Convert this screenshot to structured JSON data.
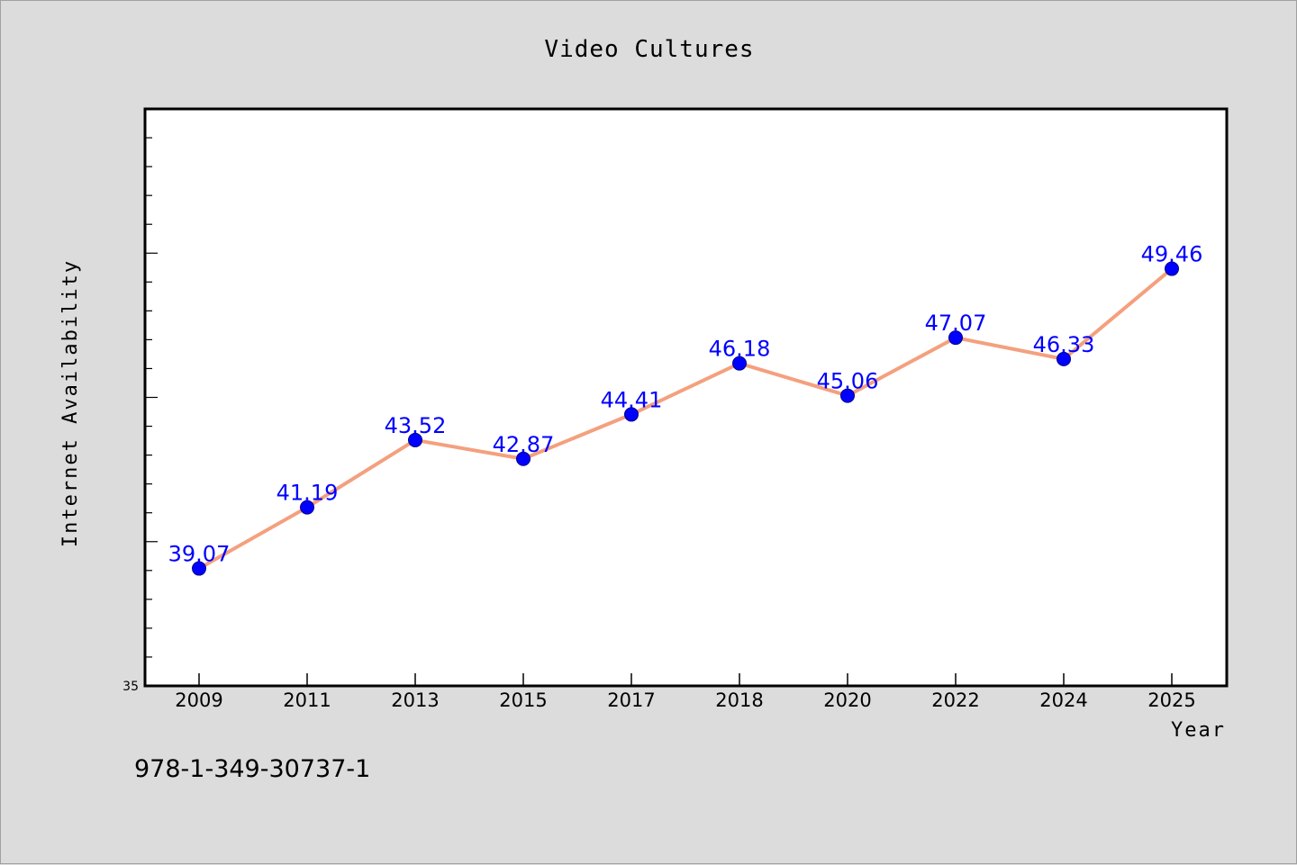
{
  "chart_data": {
    "type": "line",
    "title": "Video Cultures",
    "xlabel": "Year",
    "ylabel": "Internet Availability",
    "categories": [
      "2009",
      "2011",
      "2013",
      "2015",
      "2017",
      "2018",
      "2020",
      "2022",
      "2024",
      "2025"
    ],
    "series": [
      {
        "values": [
          39.07,
          41.19,
          43.52,
          42.87,
          44.41,
          46.18,
          45.06,
          47.07,
          46.33,
          49.46
        ]
      }
    ],
    "data_labels": [
      "39.07",
      "41.19",
      "43.52",
      "42.87",
      "44.41",
      "46.18",
      "45.06",
      "47.07",
      "46.33",
      "49.46"
    ],
    "ylim": [
      35,
      55
    ],
    "y_tick_labels": [
      "35"
    ],
    "grid": false,
    "legend": "none",
    "colors": {
      "line": "#f4a07e",
      "marker": "#0000ff",
      "data_label": "#0000ff",
      "plot_background": "#ffffff",
      "page_background": "#dcdcdc"
    }
  },
  "footer": {
    "isbn": "978-1-349-30737-1"
  }
}
